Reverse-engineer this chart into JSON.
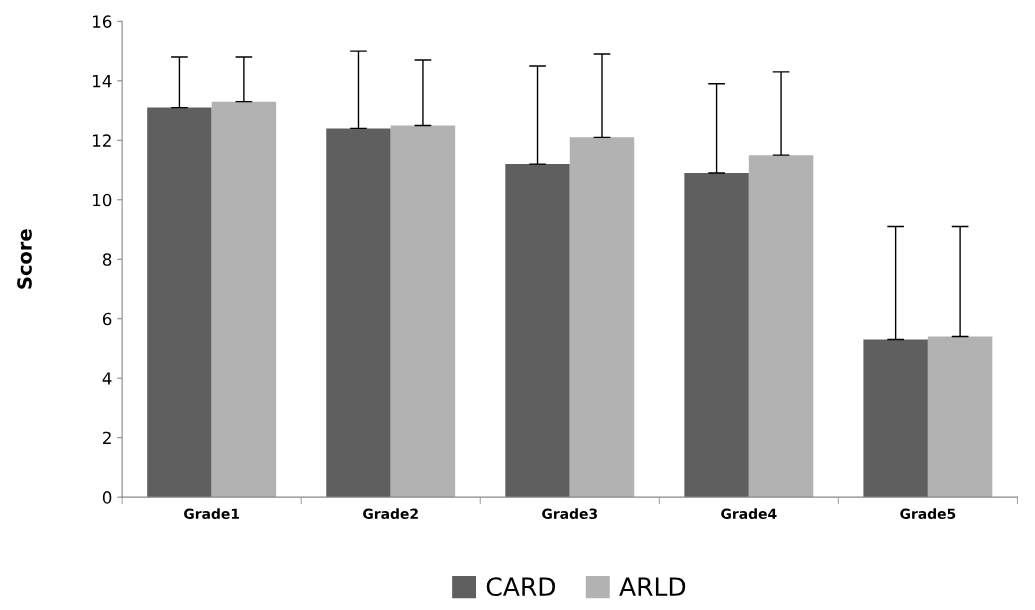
{
  "chart_data": {
    "type": "bar",
    "ylabel": "Score",
    "categories": [
      "Grade1",
      "Grade2",
      "Grade3",
      "Grade4",
      "Grade5"
    ],
    "series": [
      {
        "name": "CARD",
        "color": "#5f5f5f",
        "values": [
          13.1,
          12.4,
          11.2,
          10.9,
          5.3
        ],
        "errors": [
          [
            13.1,
            14.8
          ],
          [
            12.4,
            15.0
          ],
          [
            11.2,
            14.5
          ],
          [
            10.9,
            13.9
          ],
          [
            5.3,
            9.1
          ]
        ]
      },
      {
        "name": "ARLD",
        "color": "#b2b2b2",
        "values": [
          13.3,
          12.5,
          12.1,
          11.5,
          5.4
        ],
        "errors": [
          [
            13.3,
            14.8
          ],
          [
            12.5,
            14.7
          ],
          [
            12.1,
            14.9
          ],
          [
            11.5,
            14.3
          ],
          [
            5.4,
            9.1
          ]
        ]
      }
    ],
    "ylim": [
      0,
      16
    ],
    "yticks": [
      0,
      2,
      4,
      6,
      8,
      10,
      12,
      14,
      16
    ],
    "grid": false,
    "legend": "bottom"
  }
}
